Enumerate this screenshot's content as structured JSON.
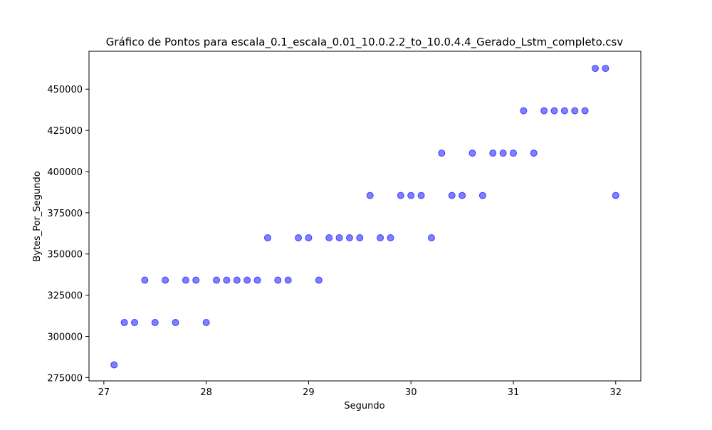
{
  "chart_data": {
    "type": "scatter",
    "title": "Gráfico de Pontos para escala_0.1_escala_0.01_10.0.2.2_to_10.0.4.4_Gerado_Lstm_completo.csv",
    "xlabel": "Segundo",
    "ylabel": "Bytes_Por_Segundo",
    "xlim": [
      26.855,
      32.245
    ],
    "ylim": [
      273000,
      473000
    ],
    "x_ticks": [
      27,
      28,
      29,
      30,
      31,
      32
    ],
    "x_tick_labels": [
      "27",
      "28",
      "29",
      "30",
      "31",
      "32"
    ],
    "y_ticks": [
      275000,
      300000,
      325000,
      350000,
      375000,
      400000,
      425000,
      450000
    ],
    "y_tick_labels": [
      "275000",
      "300000",
      "325000",
      "350000",
      "375000",
      "400000",
      "425000",
      "450000"
    ],
    "grid": false,
    "marker_color": "#0000ff",
    "marker_alpha": 0.5,
    "series": [
      {
        "x": [
          27.1,
          27.2,
          27.3,
          27.4,
          27.5,
          27.6,
          27.7,
          27.8,
          27.9,
          28.0,
          28.1,
          28.2,
          28.3,
          28.4,
          28.5,
          28.6,
          28.7,
          28.8,
          28.9,
          29.0,
          29.1,
          29.2,
          29.3,
          29.4,
          29.5,
          29.6,
          29.7,
          29.8,
          29.9,
          30.0,
          30.1,
          30.2,
          30.3,
          30.4,
          30.5,
          30.6,
          30.7,
          30.8,
          30.9,
          31.0,
          31.1,
          31.2,
          31.3,
          31.4,
          31.5,
          31.6,
          31.7,
          31.8,
          31.9,
          32.0
        ],
        "y": [
          282700,
          308400,
          308400,
          334100,
          308400,
          334100,
          308400,
          334100,
          334100,
          308400,
          334100,
          334100,
          334100,
          334100,
          334100,
          359800,
          334100,
          334100,
          359800,
          359800,
          334100,
          359800,
          359800,
          359800,
          359800,
          385500,
          359800,
          359800,
          385500,
          385500,
          385500,
          359800,
          411200,
          385500,
          385500,
          411200,
          385500,
          411200,
          411200,
          411200,
          436900,
          411200,
          436900,
          436900,
          436900,
          436900,
          436900,
          462600,
          462600,
          385500
        ]
      }
    ]
  }
}
